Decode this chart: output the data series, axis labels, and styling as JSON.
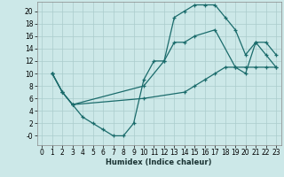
{
  "xlabel": "Humidex (Indice chaleur)",
  "bg_color": "#cce8e8",
  "grid_color": "#aacccc",
  "line_color": "#1a6b6b",
  "xlim": [
    -0.5,
    23.5
  ],
  "ylim": [
    -1.5,
    21.5
  ],
  "xticks": [
    0,
    1,
    2,
    3,
    4,
    5,
    6,
    7,
    8,
    9,
    10,
    11,
    12,
    13,
    14,
    15,
    16,
    17,
    18,
    19,
    20,
    21,
    22,
    23
  ],
  "yticks": [
    0,
    2,
    4,
    6,
    8,
    10,
    12,
    14,
    16,
    18,
    20
  ],
  "ytick_labels": [
    "-0",
    "2",
    "4",
    "6",
    "8",
    "10",
    "12",
    "14",
    "16",
    "18",
    "20"
  ],
  "curve1_x": [
    1,
    2,
    3,
    4,
    5,
    6,
    7,
    8,
    9,
    10,
    11,
    12,
    13,
    14,
    15,
    16,
    17,
    18,
    19,
    20,
    21,
    22,
    23
  ],
  "curve1_y": [
    10,
    7,
    5,
    3,
    2,
    1,
    0,
    0,
    2,
    9,
    12,
    12,
    19,
    20,
    21,
    21,
    21,
    19,
    17,
    13,
    15,
    13,
    11
  ],
  "curve2_x": [
    1,
    2,
    3,
    10,
    12,
    13,
    14,
    15,
    17,
    19,
    20,
    21,
    22,
    23
  ],
  "curve2_y": [
    10,
    7,
    5,
    8,
    12,
    15,
    15,
    16,
    17,
    11,
    10,
    15,
    15,
    13
  ],
  "curve3_x": [
    1,
    2,
    3,
    10,
    14,
    15,
    16,
    17,
    18,
    19,
    20,
    21,
    22,
    23
  ],
  "curve3_y": [
    10,
    7,
    5,
    6,
    7,
    8,
    9,
    10,
    11,
    11,
    11,
    11,
    11,
    11
  ]
}
